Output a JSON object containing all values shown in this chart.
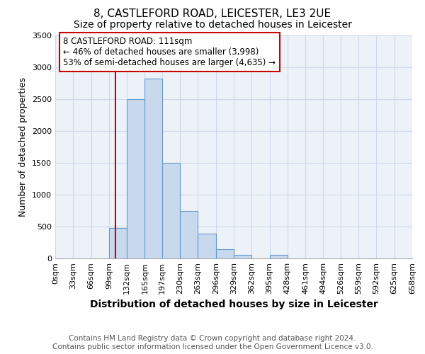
{
  "title": "8, CASTLEFORD ROAD, LEICESTER, LE3 2UE",
  "subtitle": "Size of property relative to detached houses in Leicester",
  "xlabel": "Distribution of detached houses by size in Leicester",
  "ylabel": "Number of detached properties",
  "bin_edges": [
    0,
    33,
    66,
    99,
    132,
    165,
    197,
    230,
    263,
    296,
    329,
    362,
    395,
    428,
    461,
    494,
    526,
    559,
    592,
    625,
    658
  ],
  "bar_heights": [
    0,
    0,
    0,
    480,
    2500,
    2820,
    1500,
    750,
    390,
    150,
    60,
    0,
    60,
    0,
    0,
    0,
    0,
    0,
    0,
    0
  ],
  "bar_facecolor": "#c9d9ed",
  "bar_edgecolor": "#6699cc",
  "grid_color": "#ccd8ea",
  "bg_color": "#edf2f9",
  "property_line_x": 111,
  "property_line_color": "#cc0000",
  "annotation_text": "8 CASTLEFORD ROAD: 111sqm\n← 46% of detached houses are smaller (3,998)\n53% of semi-detached houses are larger (4,635) →",
  "annotation_box_color": "#cc0000",
  "footer_line1": "Contains HM Land Registry data © Crown copyright and database right 2024.",
  "footer_line2": "Contains public sector information licensed under the Open Government Licence v3.0.",
  "ylim": [
    0,
    3500
  ],
  "yticks": [
    0,
    500,
    1000,
    1500,
    2000,
    2500,
    3000,
    3500
  ],
  "title_fontsize": 11,
  "subtitle_fontsize": 10,
  "xlabel_fontsize": 10,
  "ylabel_fontsize": 9,
  "tick_fontsize": 8,
  "footer_fontsize": 7.5,
  "annot_fontsize": 8.5
}
